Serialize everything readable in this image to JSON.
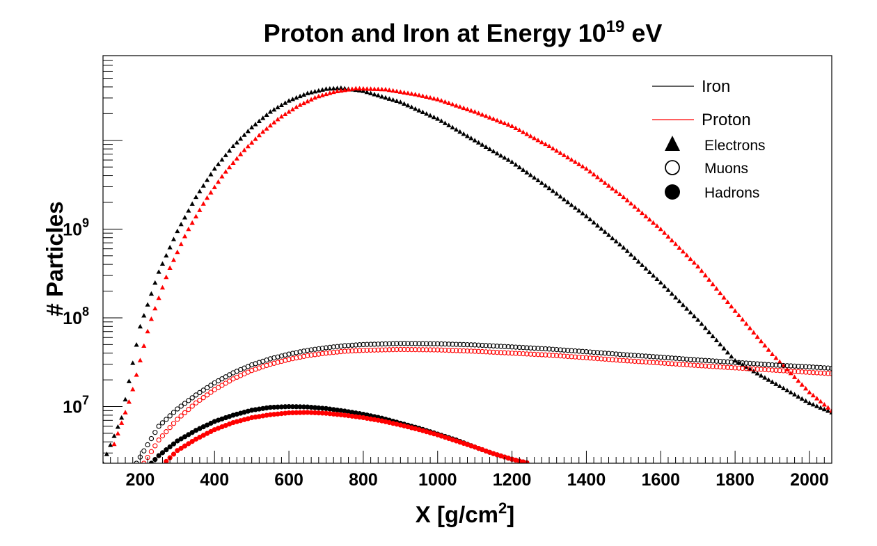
{
  "chart_data": {
    "type": "scatter",
    "title": {
      "main": "Proton and Iron at Energy 10",
      "sup": "19",
      "tail": " eV"
    },
    "xlabel": {
      "main": "X [g/cm",
      "sup": "2",
      "tail": "]"
    },
    "ylabel": "# Particles",
    "xlim": [
      100,
      2060
    ],
    "ylim": [
      2300000,
      90000000000
    ],
    "yscale": "log",
    "grid": false,
    "x_ticks": [
      200,
      400,
      600,
      800,
      1000,
      1200,
      1400,
      1600,
      1800,
      2000
    ],
    "x_tick_labels": [
      "200",
      "400",
      "600",
      "800",
      "1000",
      "1200",
      "1400",
      "1600",
      "1800",
      "2000"
    ],
    "y_ticks": [
      {
        "value": 10000000,
        "base": "10",
        "exp": "7"
      },
      {
        "value": 100000000,
        "base": "10",
        "exp": "8"
      },
      {
        "value": 1000000000,
        "base": "10",
        "exp": "9"
      }
    ],
    "colors": {
      "iron": "#000000",
      "proton": "#ff0000"
    },
    "legend": {
      "position": "top-right",
      "entries": [
        {
          "label": "Iron",
          "kind": "line",
          "color": "#000000"
        },
        {
          "label": "Proton",
          "kind": "line",
          "color": "#ff0000"
        },
        {
          "label": "Electrons",
          "kind": "triangle"
        },
        {
          "label": "Muons",
          "kind": "open-circle"
        },
        {
          "label": "Hadrons",
          "kind": "filled-circle"
        }
      ]
    },
    "series": [
      {
        "primary": "iron",
        "particle": "electrons",
        "marker": "triangle",
        "x": [
          100,
          150,
          200,
          250,
          300,
          350,
          400,
          450,
          500,
          550,
          600,
          650,
          700,
          740,
          800,
          900,
          1000,
          1100,
          1200,
          1300,
          1400,
          1500,
          1600,
          1700,
          1800,
          1900,
          2000,
          2060
        ],
        "y": [
          2300000,
          7500000,
          80000000,
          330000000,
          950000000,
          2300000000,
          4800000000,
          8600000000,
          14000000000,
          21000000000,
          28000000000,
          34000000000,
          38000000000,
          39000000000,
          36000000000,
          27000000000,
          17500000000,
          10000000000,
          5700000000,
          2900000000,
          1400000000,
          620000000,
          250000000,
          95000000,
          33000000,
          19000000,
          11000000,
          8600000
        ]
      },
      {
        "primary": "proton",
        "particle": "electrons",
        "marker": "triangle",
        "x": [
          125,
          175,
          225,
          275,
          325,
          375,
          425,
          475,
          525,
          575,
          625,
          675,
          725,
          780,
          860,
          940,
          1000,
          1100,
          1200,
          1300,
          1400,
          1500,
          1600,
          1700,
          1800,
          1900,
          2000,
          2060
        ],
        "y": [
          3300000,
          13000000,
          85000000,
          330000000,
          920000000,
          2100000000,
          4200000000,
          7400000000,
          12000000000,
          18000000000,
          24500000000,
          31000000000,
          35500000000,
          38500000000,
          37500000000,
          33000000000,
          29000000000,
          21000000000,
          14500000000,
          8600000000,
          4800000000,
          2300000000,
          1000000000,
          380000000,
          120000000,
          39000000,
          14500000,
          9000000
        ]
      },
      {
        "primary": "iron",
        "particle": "muons",
        "marker": "open-circle",
        "x": [
          190,
          250,
          300,
          350,
          400,
          450,
          500,
          550,
          600,
          650,
          700,
          750,
          800,
          900,
          1000,
          1100,
          1200,
          1300,
          1400,
          1500,
          1600,
          1700,
          1800,
          1900,
          2000,
          2060
        ],
        "y": [
          2300000,
          6000000,
          9400000,
          13500000,
          18500000,
          24000000,
          29500000,
          34500000,
          39000000,
          43000000,
          46000000,
          48500000,
          50000000,
          51500000,
          51000000,
          49500000,
          47000000,
          44500000,
          41500000,
          38500000,
          36000000,
          33500000,
          31500000,
          29500000,
          28000000,
          27000000
        ]
      },
      {
        "primary": "proton",
        "particle": "muons",
        "marker": "open-circle",
        "x": [
          210,
          250,
          300,
          350,
          400,
          450,
          500,
          550,
          600,
          650,
          700,
          750,
          800,
          900,
          1000,
          1100,
          1200,
          1300,
          1400,
          1500,
          1600,
          1700,
          1800,
          1900,
          2000,
          2060
        ],
        "y": [
          2300000,
          4200000,
          7200000,
          11000000,
          15500000,
          20500000,
          25500000,
          30000000,
          34000000,
          37500000,
          40000000,
          42000000,
          43000000,
          44000000,
          43500000,
          42000000,
          40000000,
          38000000,
          35500000,
          33000000,
          31000000,
          29000000,
          27300000,
          25800000,
          24300000,
          23500000
        ]
      },
      {
        "primary": "iron",
        "particle": "hadrons",
        "marker": "filled-circle",
        "x": [
          230,
          250,
          300,
          350,
          400,
          450,
          500,
          550,
          600,
          650,
          700,
          750,
          800,
          850,
          900,
          950,
          1000,
          1050,
          1100,
          1150,
          1200,
          1245
        ],
        "y": [
          2300000,
          2800000,
          4100000,
          5400000,
          6800000,
          8000000,
          9100000,
          9800000,
          10000000,
          9900000,
          9500000,
          8900000,
          8200000,
          7400000,
          6500000,
          5700000,
          4900000,
          4200000,
          3500000,
          2950000,
          2550000,
          2300000
        ]
      },
      {
        "primary": "proton",
        "particle": "hadrons",
        "marker": "filled-circle",
        "x": [
          265,
          300,
          350,
          400,
          450,
          500,
          550,
          600,
          650,
          700,
          750,
          800,
          850,
          900,
          950,
          1000,
          1050,
          1100,
          1150,
          1200,
          1245
        ],
        "y": [
          2300000,
          3200000,
          4300000,
          5500000,
          6600000,
          7500000,
          8100000,
          8500000,
          8600000,
          8400000,
          8000000,
          7500000,
          6900000,
          6200000,
          5500000,
          4800000,
          4100000,
          3500000,
          2950000,
          2550000,
          2300000
        ]
      }
    ]
  }
}
